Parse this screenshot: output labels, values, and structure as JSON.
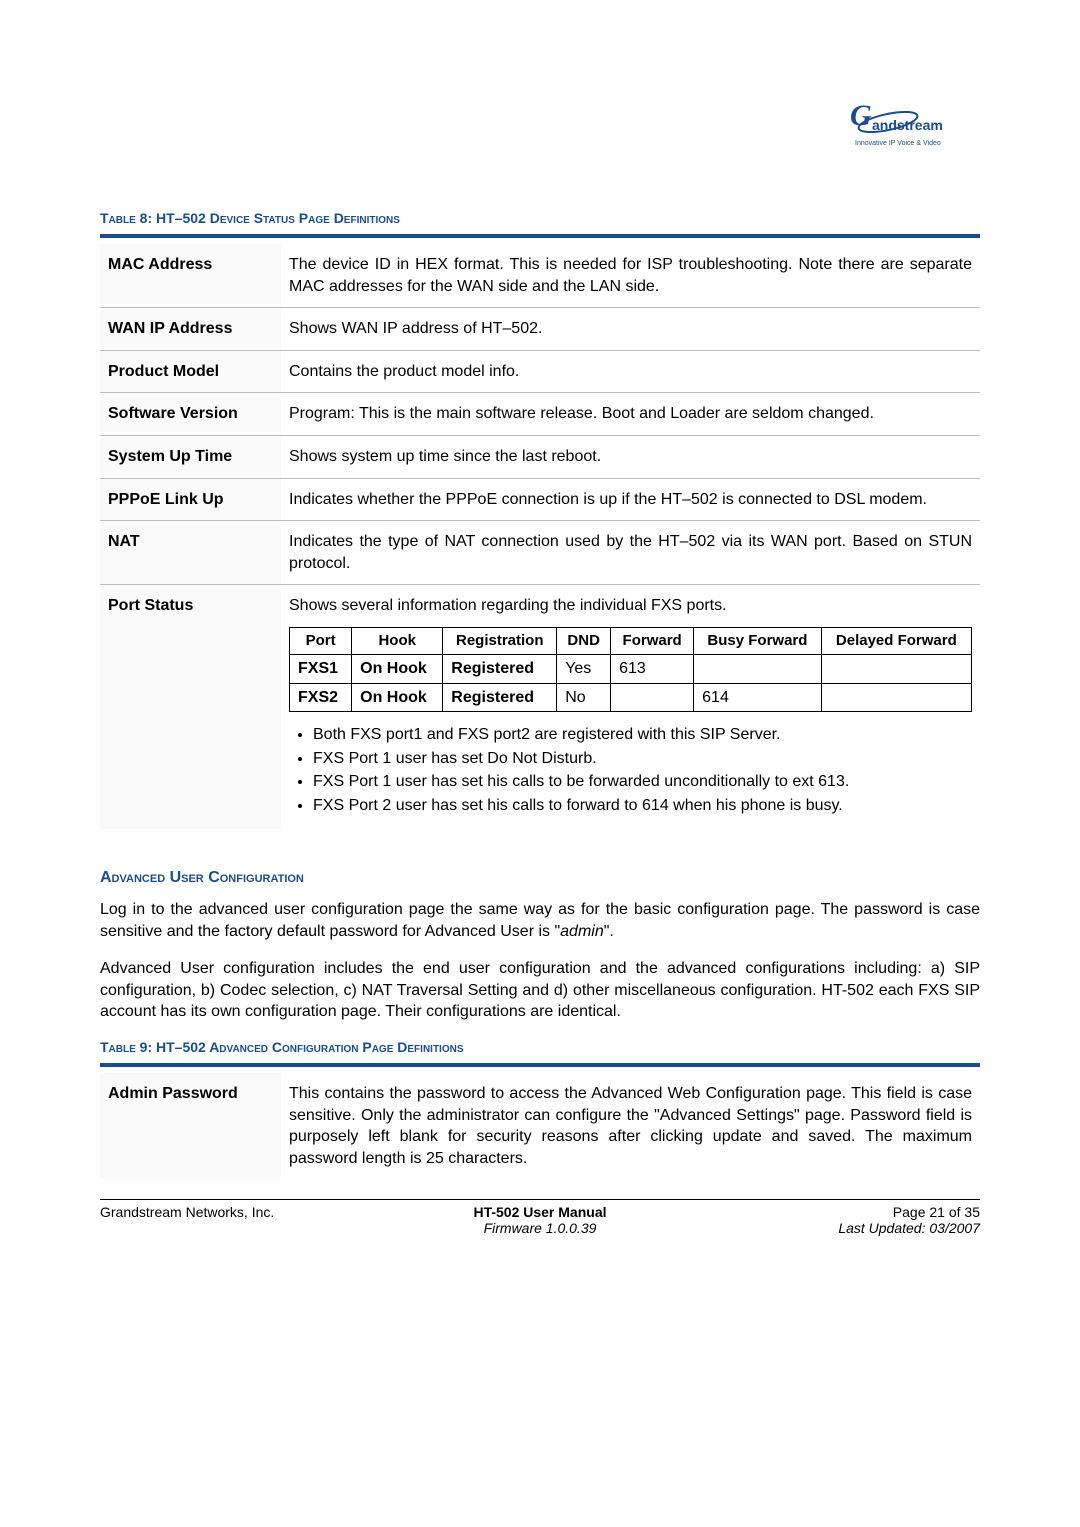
{
  "logo": {
    "tagline": "Innovative IP Voice & Video"
  },
  "table8": {
    "caption_prefix": "Table 8:  ",
    "caption": "HT–502 Device Status Page Definitions",
    "rows": [
      {
        "label": "MAC Address",
        "desc": "The device ID in HEX format.  This is needed for ISP troubleshooting. Note there are separate MAC addresses for the WAN side and the LAN side."
      },
      {
        "label": "WAN IP Address",
        "desc": "Shows WAN IP address of HT–502."
      },
      {
        "label": "Product Model",
        "desc": "Contains the product model info."
      },
      {
        "label": "Software Version",
        "desc": "Program: This is the main software release. Boot and Loader are seldom changed."
      },
      {
        "label": "System Up Time",
        "desc": "Shows system up time since the last reboot."
      },
      {
        "label": "PPPoE Link Up",
        "desc": "Indicates whether the PPPoE connection is up if the HT–502 is connected to DSL modem."
      },
      {
        "label": "NAT",
        "desc": "Indicates the type of NAT connection used by the HT–502 via its WAN port. Based on STUN protocol."
      }
    ],
    "port_status": {
      "label": "Port Status",
      "intro": "Shows several information regarding the individual FXS ports.",
      "headers": [
        "Port",
        "Hook",
        "Registration",
        "DND",
        "Forward",
        "Busy Forward",
        "Delayed Forward"
      ],
      "rows": [
        [
          "FXS1",
          "On Hook",
          "Registered",
          "Yes",
          "613",
          "",
          ""
        ],
        [
          "FXS2",
          "On Hook",
          "Registered",
          "No",
          "",
          "614",
          ""
        ]
      ],
      "bullets": [
        "Both FXS port1 and FXS port2 are registered with this SIP Server.",
        "FXS Port 1 user has set Do Not Disturb.",
        "FXS Port 1 user has set his calls to be forwarded unconditionally to ext 613.",
        "FXS Port 2 user has set his calls to forward to 614 when his phone is busy."
      ]
    }
  },
  "advanced": {
    "heading": "Advanced User Configuration",
    "para1_a": "Log in to the advanced user configuration page the same way as for the basic configuration page.   The password is case sensitive and the factory default password for Advanced User is \"",
    "para1_em": "admin",
    "para1_b": "\".",
    "para2": "Advanced User configuration includes the end user configuration and the advanced configurations including:  a) SIP configuration, b) Codec selection, c) NAT Traversal Setting and d) other miscellaneous configuration.  HT-502 each FXS SIP account has its own configuration page.  Their configurations are identical."
  },
  "table9": {
    "caption_prefix": "Table 9:  ",
    "caption": "HT–502 Advanced Configuration Page Definitions",
    "row": {
      "label": "Admin Password",
      "desc": "This contains the password to access the Advanced Web Configuration page. This field is case sensitive. Only the administrator can configure the \"Advanced Settings\" page.  Password field is purposely left blank for security reasons after clicking update and saved.  The maximum password length is 25 characters."
    }
  },
  "footer": {
    "left": "Grandstream Networks, Inc.",
    "mid_bold": "HT-502 User Manual",
    "mid_italic": "Firmware 1.0.0.39",
    "right_a": "Page 21 of 35",
    "right_b": "Last Updated:  03/2007"
  }
}
